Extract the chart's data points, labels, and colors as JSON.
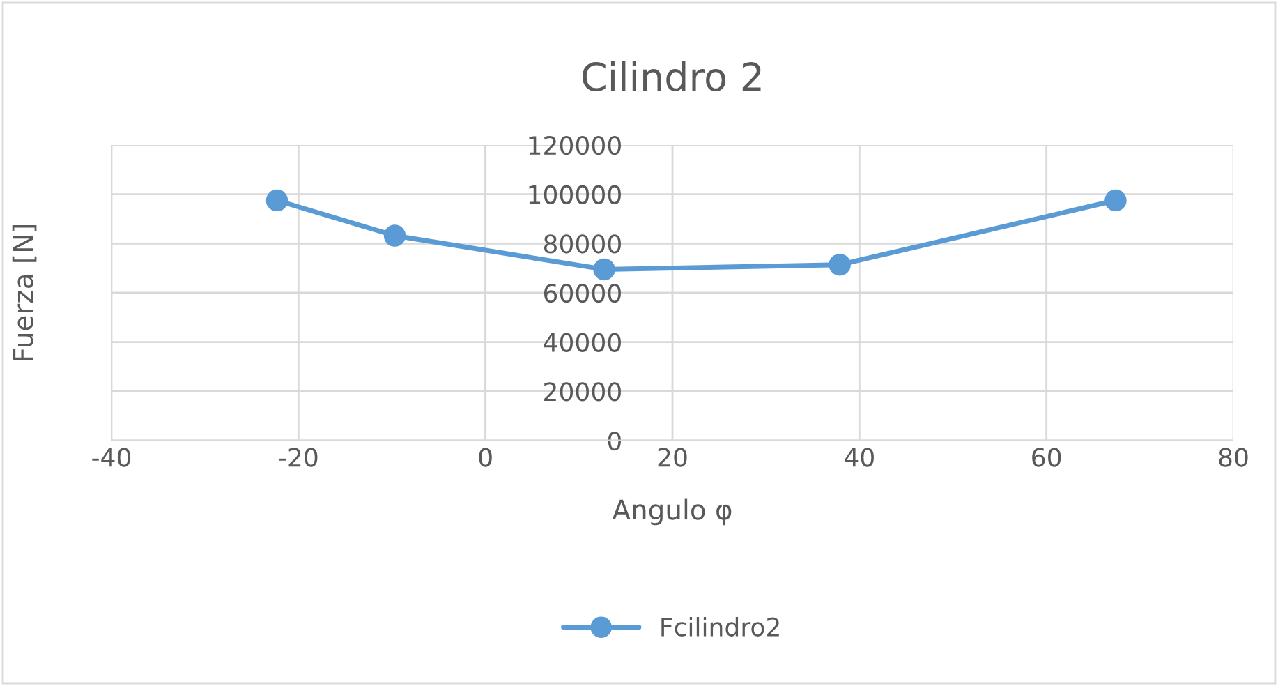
{
  "chart_data": {
    "type": "line",
    "title": "Cilindro 2",
    "xlabel": "Angulo φ",
    "ylabel": "Fuerza [N]",
    "x": [
      -22.3,
      -9.7,
      12.7,
      37.9,
      67.4
    ],
    "series": [
      {
        "name": "Fcilindro2",
        "color": "#5b9bd5",
        "values": [
          97500,
          83200,
          69500,
          71400,
          97500
        ]
      }
    ],
    "xlim": [
      -40,
      80
    ],
    "xticks": [
      -40,
      -20,
      0,
      20,
      40,
      60,
      80
    ],
    "ylim": [
      0,
      120000
    ],
    "yticks": [
      0,
      20000,
      40000,
      60000,
      80000,
      100000,
      120000
    ],
    "grid": true,
    "legend": "bottom",
    "marker": "circle",
    "line_style": "solid"
  }
}
